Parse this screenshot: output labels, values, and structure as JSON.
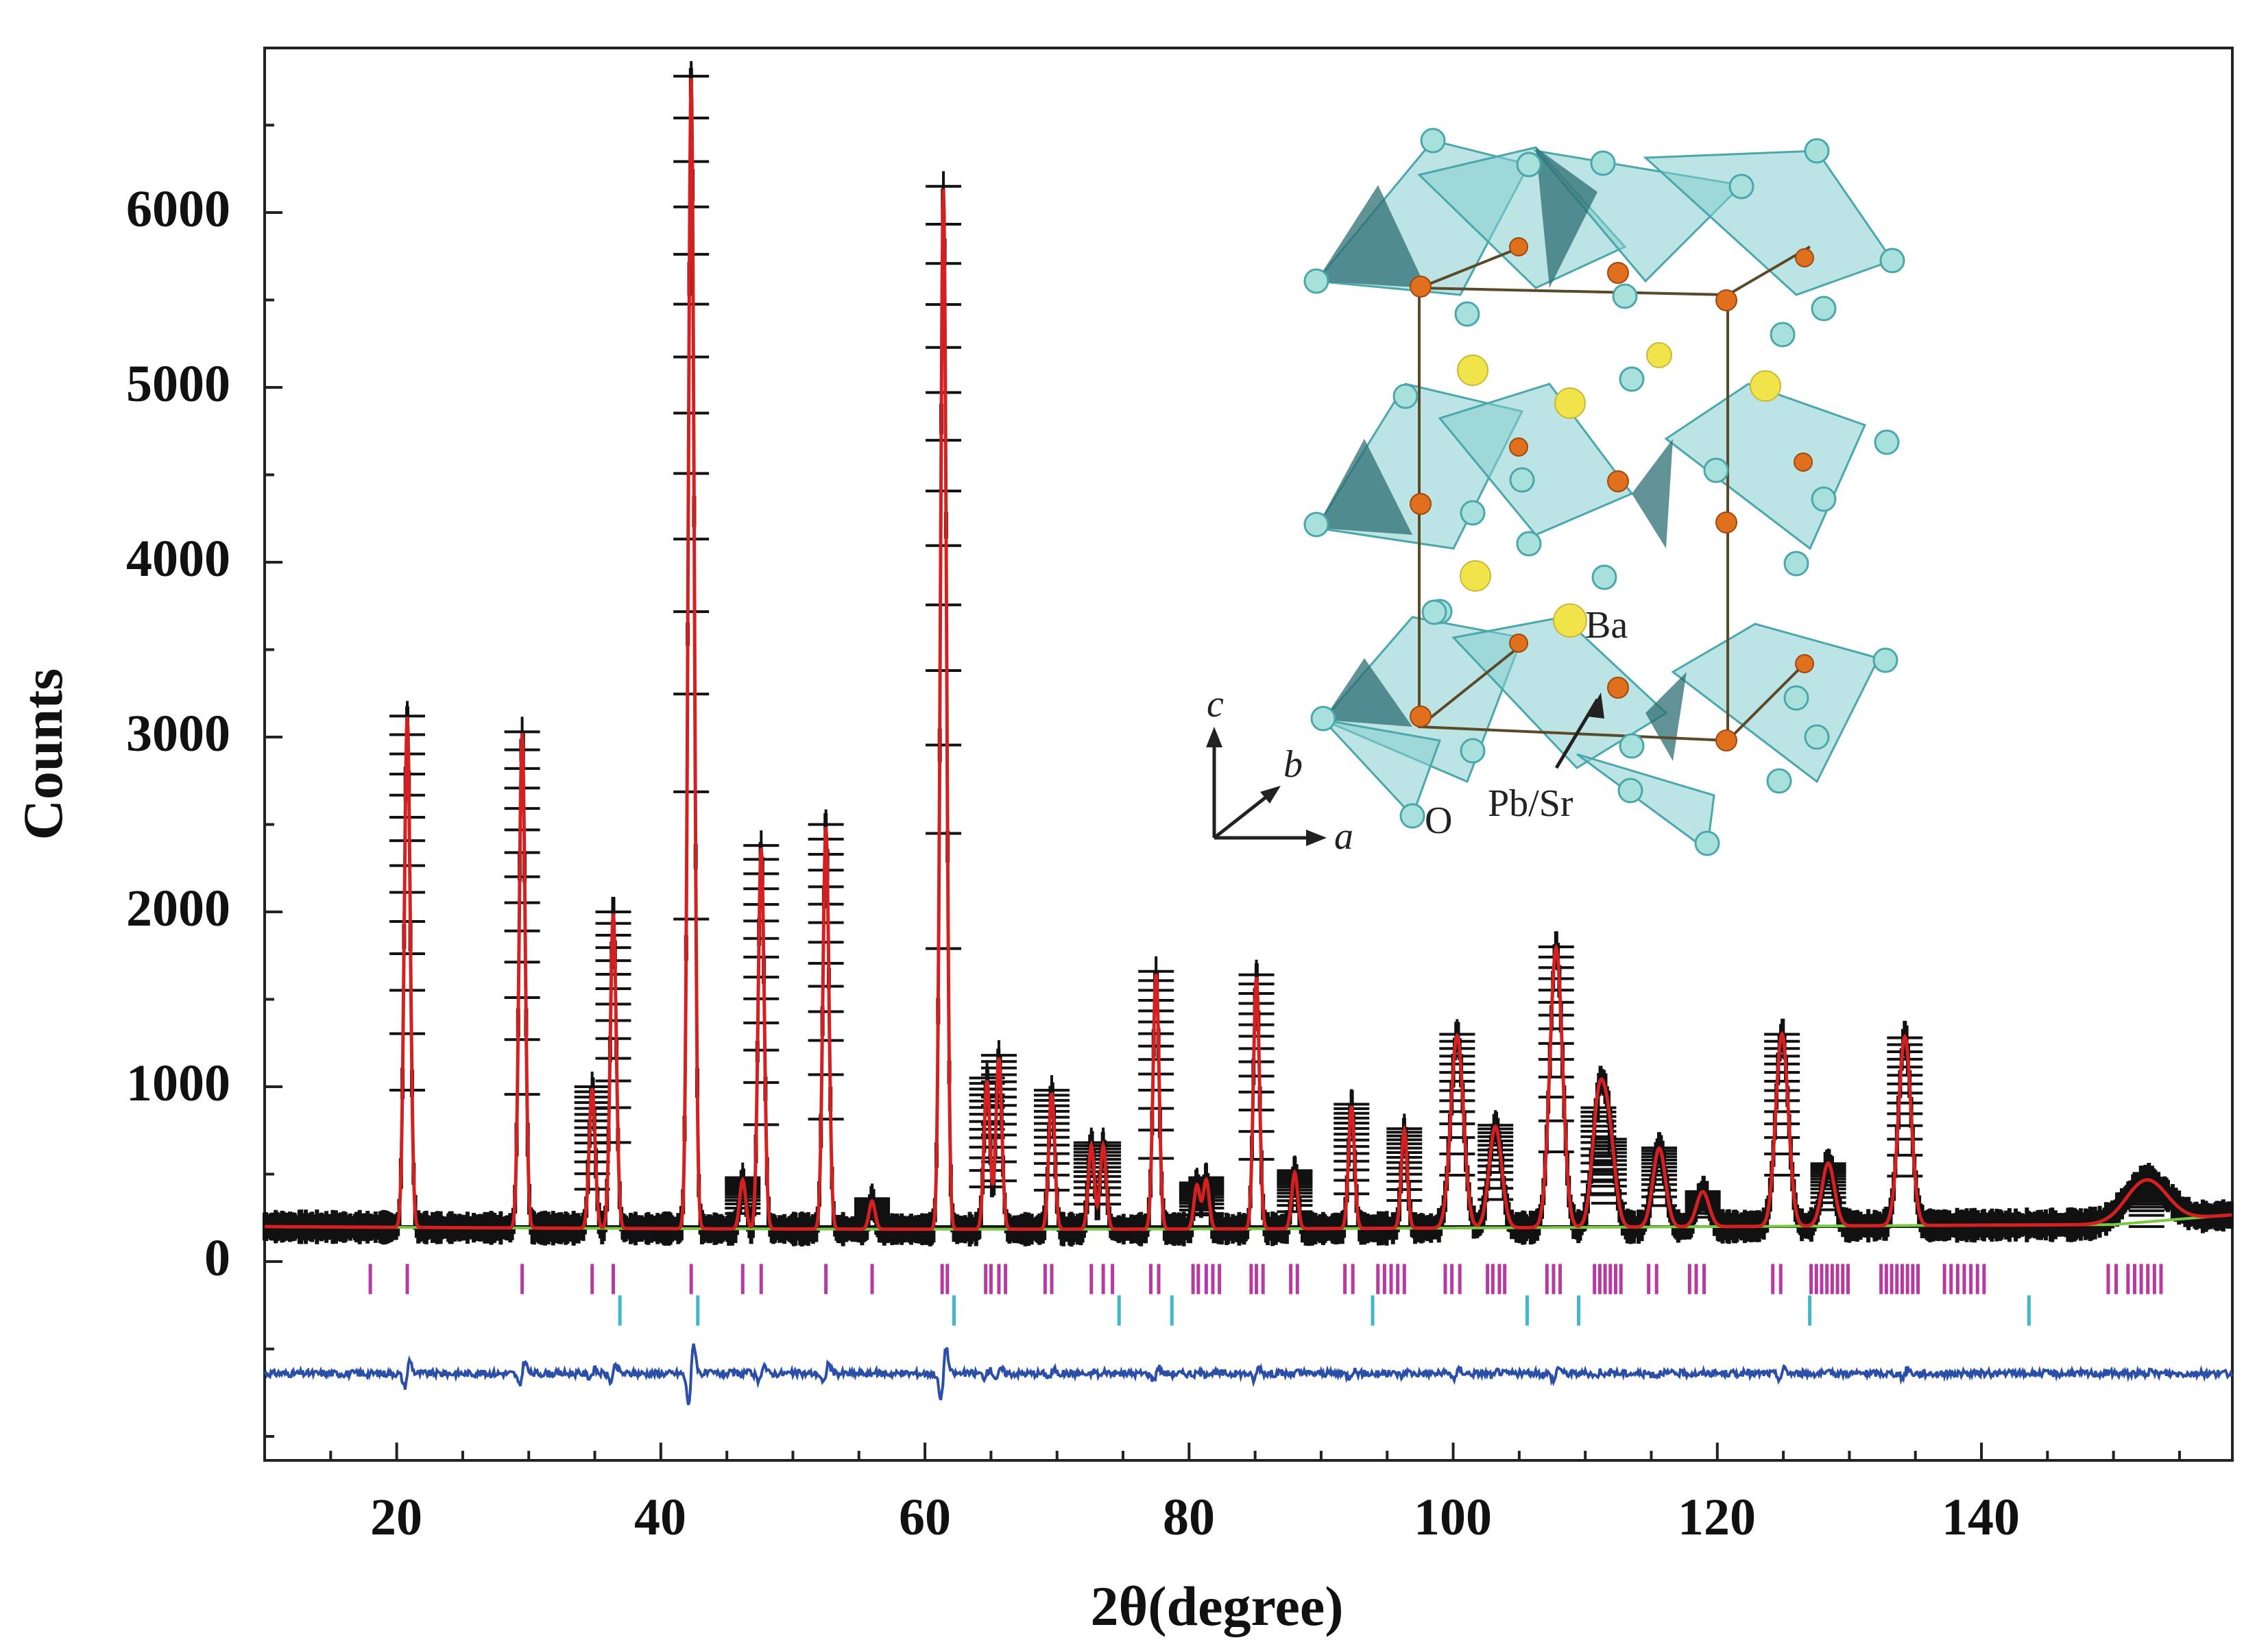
{
  "chart_data": {
    "type": "line",
    "title": "",
    "xlabel": "2θ(degree)",
    "ylabel": "Counts",
    "xlim": [
      10,
      159
    ],
    "ylim": [
      -1250,
      6900
    ],
    "x_ticks": [
      20,
      40,
      60,
      80,
      100,
      120,
      140
    ],
    "y_ticks": [
      0,
      1000,
      2000,
      3000,
      4000,
      5000,
      6000
    ],
    "grid": false,
    "background_level": 200,
    "peaks": [
      {
        "x": 20.8,
        "y": 3120
      },
      {
        "x": 29.5,
        "y": 3030
      },
      {
        "x": 34.8,
        "y": 1000
      },
      {
        "x": 36.4,
        "y": 2000
      },
      {
        "x": 42.3,
        "y": 6780
      },
      {
        "x": 46.2,
        "y": 480
      },
      {
        "x": 47.6,
        "y": 2380
      },
      {
        "x": 52.5,
        "y": 2500
      },
      {
        "x": 56.0,
        "y": 360
      },
      {
        "x": 61.4,
        "y": 6150
      },
      {
        "x": 64.7,
        "y": 1050
      },
      {
        "x": 65.6,
        "y": 1180
      },
      {
        "x": 69.6,
        "y": 980
      },
      {
        "x": 72.6,
        "y": 680
      },
      {
        "x": 73.5,
        "y": 680
      },
      {
        "x": 77.5,
        "y": 1660
      },
      {
        "x": 80.6,
        "y": 450
      },
      {
        "x": 81.3,
        "y": 480
      },
      {
        "x": 85.1,
        "y": 1640
      },
      {
        "x": 88.0,
        "y": 520
      },
      {
        "x": 92.3,
        "y": 900
      },
      {
        "x": 96.3,
        "y": 760
      },
      {
        "x": 100.3,
        "y": 1300
      },
      {
        "x": 103.2,
        "y": 780
      },
      {
        "x": 107.8,
        "y": 1800
      },
      {
        "x": 111.0,
        "y": 880
      },
      {
        "x": 111.8,
        "y": 700
      },
      {
        "x": 115.6,
        "y": 650
      },
      {
        "x": 118.9,
        "y": 400
      },
      {
        "x": 124.9,
        "y": 1300
      },
      {
        "x": 128.4,
        "y": 560
      },
      {
        "x": 134.2,
        "y": 1280
      },
      {
        "x": 152.5,
        "y": 440
      }
    ],
    "series": [
      {
        "name": "Observed",
        "color": "#111111",
        "marker": "+"
      },
      {
        "name": "Calculated",
        "color": "#d42020"
      },
      {
        "name": "Background",
        "color": "#7ac943"
      },
      {
        "name": "Difference",
        "color": "#2b4fa8",
        "baseline": -640
      },
      {
        "name": "Bragg positions (phase 1)",
        "color": "#b63aa0",
        "baseline_y": -100,
        "positions": [
          18.0,
          20.8,
          29.5,
          34.8,
          36.4,
          42.3,
          46.2,
          47.6,
          52.5,
          56.0,
          61.3,
          61.7,
          64.6,
          65.0,
          65.6,
          66.1,
          69.1,
          69.6,
          72.6,
          73.5,
          74.2,
          77.1,
          77.7,
          80.3,
          80.7,
          81.3,
          81.8,
          82.3,
          84.7,
          85.1,
          85.6,
          87.7,
          88.2,
          91.8,
          92.4,
          94.3,
          94.8,
          95.3,
          95.8,
          96.3,
          99.4,
          99.9,
          100.5,
          102.6,
          103.0,
          103.5,
          103.9,
          107.1,
          107.6,
          108.1,
          110.7,
          111.1,
          111.5,
          111.9,
          112.3,
          112.7,
          114.8,
          115.4,
          117.9,
          118.4,
          119.0,
          124.2,
          124.8,
          127.1,
          127.5,
          127.9,
          128.3,
          128.7,
          129.1,
          129.5,
          129.9,
          132.4,
          132.8,
          133.2,
          133.6,
          134.0,
          134.4,
          134.8,
          135.2,
          137.2,
          137.7,
          138.2,
          138.7,
          139.2,
          139.7,
          140.2,
          149.6,
          150.2,
          151.1,
          151.6,
          152.1,
          152.6,
          153.1,
          153.6
        ]
      },
      {
        "name": "Bragg positions (phase 2)",
        "color": "#3fb8c9",
        "baseline_y": -280,
        "positions": [
          36.9,
          42.8,
          62.2,
          74.7,
          78.7,
          93.9,
          105.6,
          109.5,
          127.0,
          143.6
        ]
      }
    ],
    "annotations": [
      "Ba",
      "Pb/Sr",
      "O",
      "c",
      "b",
      "a"
    ]
  }
}
